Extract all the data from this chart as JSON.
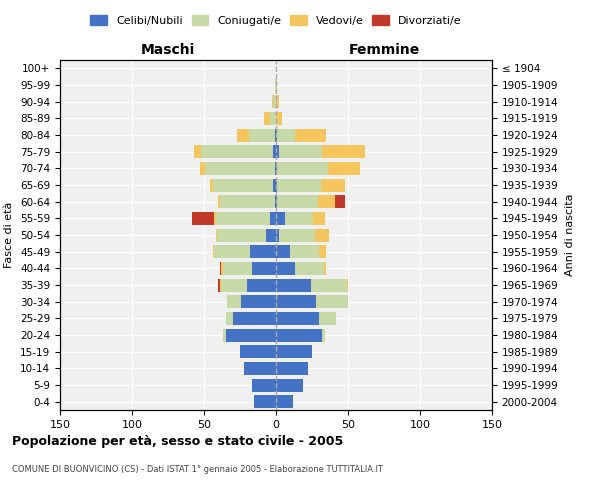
{
  "age_groups": [
    "0-4",
    "5-9",
    "10-14",
    "15-19",
    "20-24",
    "25-29",
    "30-34",
    "35-39",
    "40-44",
    "45-49",
    "50-54",
    "55-59",
    "60-64",
    "65-69",
    "70-74",
    "75-79",
    "80-84",
    "85-89",
    "90-94",
    "95-99",
    "100+"
  ],
  "birth_years": [
    "2000-2004",
    "1995-1999",
    "1990-1994",
    "1985-1989",
    "1980-1984",
    "1975-1979",
    "1970-1974",
    "1965-1969",
    "1960-1964",
    "1955-1959",
    "1950-1954",
    "1945-1949",
    "1940-1944",
    "1935-1939",
    "1930-1934",
    "1925-1929",
    "1920-1924",
    "1915-1919",
    "1910-1914",
    "1905-1909",
    "≤ 1904"
  ],
  "male": {
    "celibi": [
      15,
      17,
      22,
      25,
      35,
      30,
      24,
      20,
      17,
      18,
      7,
      4,
      1,
      2,
      1,
      2,
      1,
      0,
      0,
      0,
      0
    ],
    "coniugati": [
      0,
      0,
      0,
      0,
      2,
      5,
      10,
      18,
      20,
      25,
      34,
      38,
      38,
      42,
      48,
      50,
      18,
      4,
      2,
      1,
      0
    ],
    "vedovi": [
      0,
      0,
      0,
      0,
      0,
      0,
      0,
      1,
      1,
      1,
      1,
      1,
      1,
      2,
      4,
      5,
      8,
      4,
      1,
      0,
      0
    ],
    "divorziati": [
      0,
      0,
      0,
      0,
      0,
      0,
      0,
      1,
      1,
      0,
      0,
      15,
      0,
      0,
      0,
      0,
      0,
      0,
      0,
      0,
      0
    ]
  },
  "female": {
    "nubili": [
      12,
      19,
      22,
      25,
      32,
      30,
      28,
      24,
      13,
      10,
      2,
      6,
      1,
      1,
      1,
      2,
      1,
      0,
      0,
      0,
      0
    ],
    "coniugate": [
      0,
      0,
      0,
      0,
      2,
      12,
      22,
      25,
      20,
      20,
      25,
      20,
      28,
      30,
      35,
      30,
      12,
      0,
      0,
      0,
      0
    ],
    "vedove": [
      0,
      0,
      0,
      0,
      0,
      0,
      0,
      1,
      2,
      5,
      10,
      8,
      12,
      17,
      22,
      30,
      22,
      4,
      2,
      1,
      0
    ],
    "divorziate": [
      0,
      0,
      0,
      0,
      0,
      0,
      0,
      0,
      0,
      0,
      0,
      0,
      7,
      0,
      0,
      0,
      0,
      0,
      0,
      0,
      0
    ]
  },
  "colors": {
    "celibi": "#4472c4",
    "coniugati": "#c8d9a8",
    "vedovi": "#f5c65e",
    "divorziati": "#c0392b"
  },
  "title": "Popolazione per età, sesso e stato civile - 2005",
  "subtitle": "COMUNE DI BUONVICINO (CS) - Dati ISTAT 1° gennaio 2005 - Elaborazione TUTTITALIA.IT",
  "xlabel_left": "Maschi",
  "xlabel_right": "Femmine",
  "ylabel_left": "Fasce di età",
  "ylabel_right": "Anni di nascita",
  "xlim": 150,
  "background": "#f0f0f0",
  "legend_labels": [
    "Celibi/Nubili",
    "Coniugati/e",
    "Vedovi/e",
    "Divorziati/e"
  ]
}
